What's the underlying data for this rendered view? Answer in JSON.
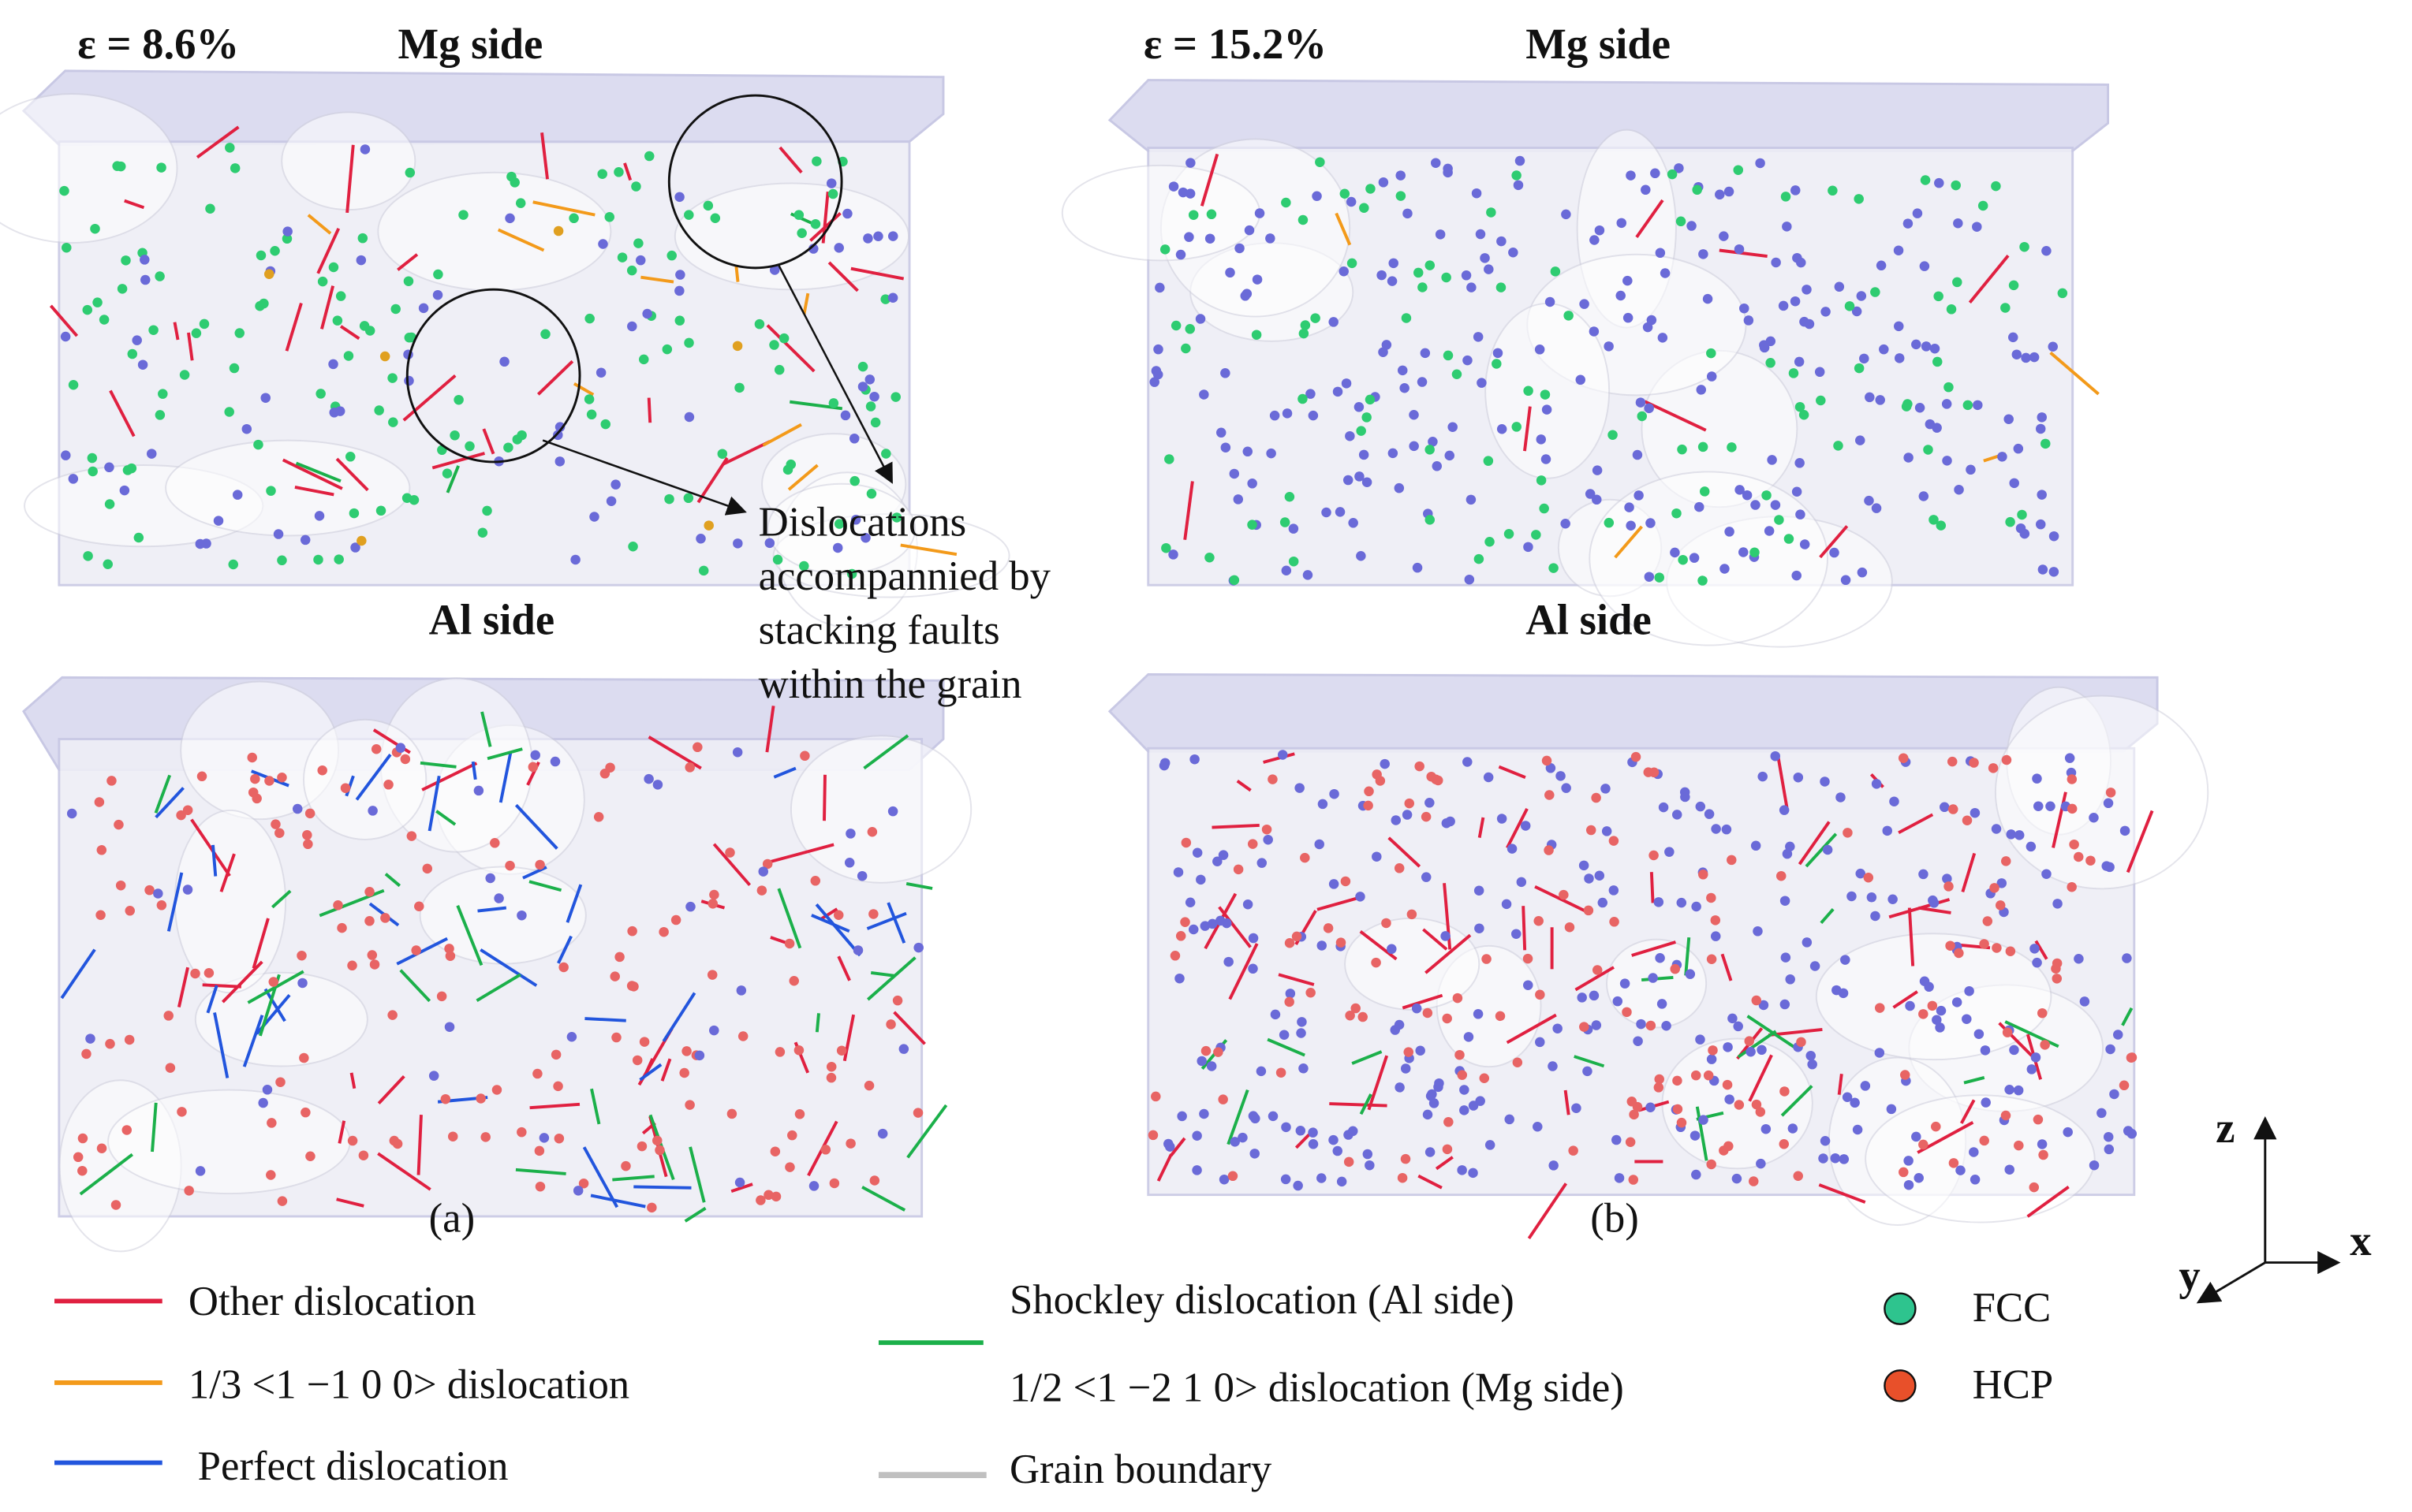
{
  "panels": [
    {
      "strain": "ε = 8.6%",
      "mg_label": "Mg side",
      "al_label": "Al side",
      "caption": "(a)"
    },
    {
      "strain": "ε = 15.2%",
      "mg_label": "Mg side",
      "al_label": "Al side",
      "caption": "(b)"
    }
  ],
  "annotation": {
    "lines": [
      "Dislocations",
      "accompannied by",
      "stacking faults",
      "within the grain"
    ]
  },
  "legend": {
    "items": [
      "Other dislocation",
      "1/3 <1 −1 0 0> dislocation",
      "Perfect dislocation",
      "Shockley dislocation (Al side)",
      "1/2 <1 −2 1 0> dislocation (Mg side)",
      "Grain boundary",
      "FCC",
      "HCP"
    ]
  },
  "axes": {
    "z": "z",
    "x": "x",
    "y": "y"
  }
}
